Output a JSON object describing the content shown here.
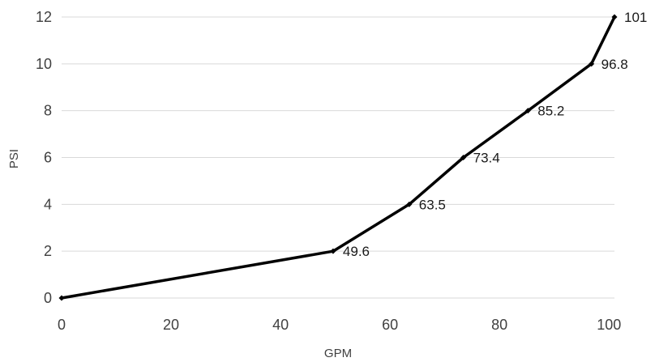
{
  "chart_data": {
    "type": "line",
    "title": "",
    "xlabel": "GPM",
    "ylabel": "PSI",
    "xlim": [
      0,
      101
    ],
    "ylim": [
      0,
      12
    ],
    "x_ticks": [
      "0",
      "20",
      "40",
      "60",
      "80",
      "100"
    ],
    "y_ticks": [
      "0",
      "2",
      "4",
      "6",
      "8",
      "10",
      "12"
    ],
    "grid": "horizontal",
    "legend": "none",
    "line_color": "#000000",
    "series": [
      {
        "x": [
          0,
          49.6,
          63.5,
          73.4,
          85.2,
          96.8,
          101
        ],
        "y": [
          0,
          2,
          4,
          6,
          8,
          10,
          12
        ],
        "labels": [
          "",
          "49.6",
          "63.5",
          "73.4",
          "85.2",
          "96.8",
          "101"
        ]
      }
    ]
  }
}
